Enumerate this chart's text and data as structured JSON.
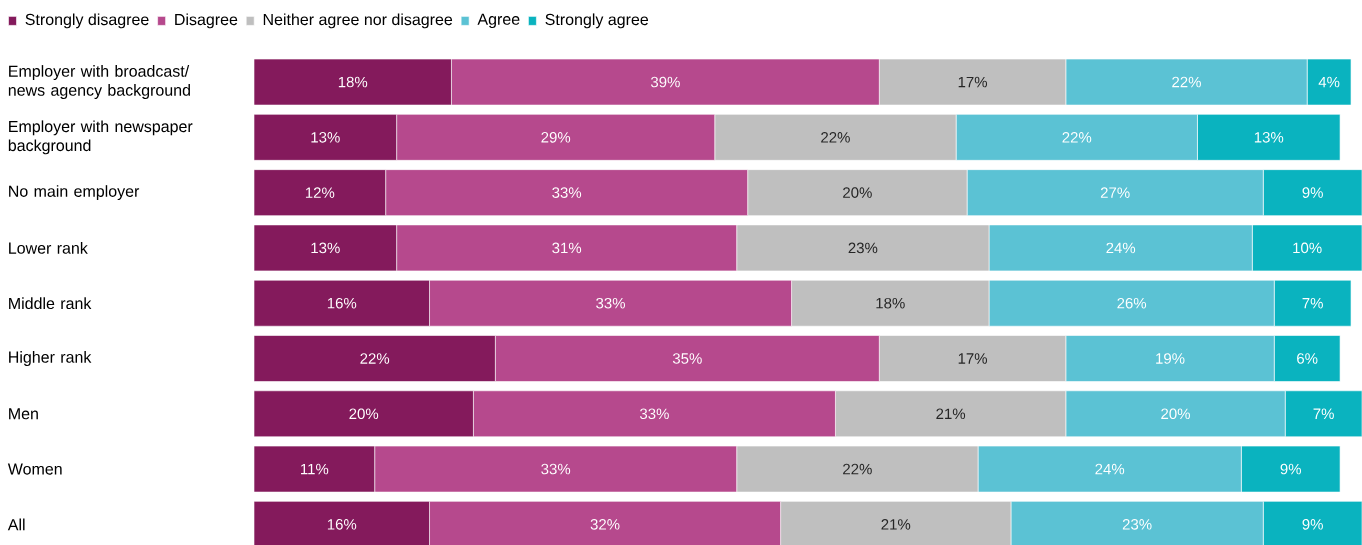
{
  "chart_data": {
    "type": "bar",
    "orientation": "horizontal",
    "stacked": true,
    "legend": "top left",
    "categories": [
      "Employer with broadcast/ news agency background",
      "Employer with newspaper background",
      "No main employer",
      "Lower rank",
      "Middle rank",
      "Higher rank",
      "Men",
      "Women",
      "All"
    ],
    "series": [
      {
        "name": "Strongly disagree",
        "color": "#841a5c",
        "values": [
          18,
          13,
          12,
          13,
          16,
          22,
          20,
          11,
          16
        ],
        "value_labels": [
          "18%",
          "13%",
          "12%",
          "13%",
          "16%",
          "22%",
          "20%",
          "11%",
          "16%"
        ]
      },
      {
        "name": "Disagree",
        "color": "#b6498d",
        "values": [
          39,
          29,
          33,
          31,
          33,
          35,
          33,
          33,
          32
        ],
        "value_labels": [
          "39%",
          "29%",
          "33%",
          "31%",
          "33%",
          "35%",
          "33%",
          "33%",
          "32%"
        ]
      },
      {
        "name": "Neither agree nor disagree",
        "color": "#bfbfbf",
        "values": [
          17,
          22,
          20,
          23,
          18,
          17,
          21,
          22,
          21
        ],
        "value_labels": [
          "17%",
          "22%",
          "20%",
          "23%",
          "18%",
          "17%",
          "21%",
          "22%",
          "21%"
        ]
      },
      {
        "name": "Agree",
        "color": "#5bc2d4",
        "values": [
          22,
          22,
          27,
          24,
          26,
          19,
          20,
          24,
          23
        ],
        "value_labels": [
          "22%",
          "22%",
          "27%",
          "24%",
          "26%",
          "19%",
          "20%",
          "24%",
          "23%"
        ]
      },
      {
        "name": "Strongly agree",
        "color": "#0ab3bf",
        "values": [
          4,
          13,
          9,
          10,
          7,
          6,
          7,
          9,
          9
        ],
        "value_labels": [
          "4%",
          "13%",
          "9%",
          "10%",
          "7%",
          "6%",
          "7%",
          "9%",
          "9%"
        ]
      }
    ]
  }
}
